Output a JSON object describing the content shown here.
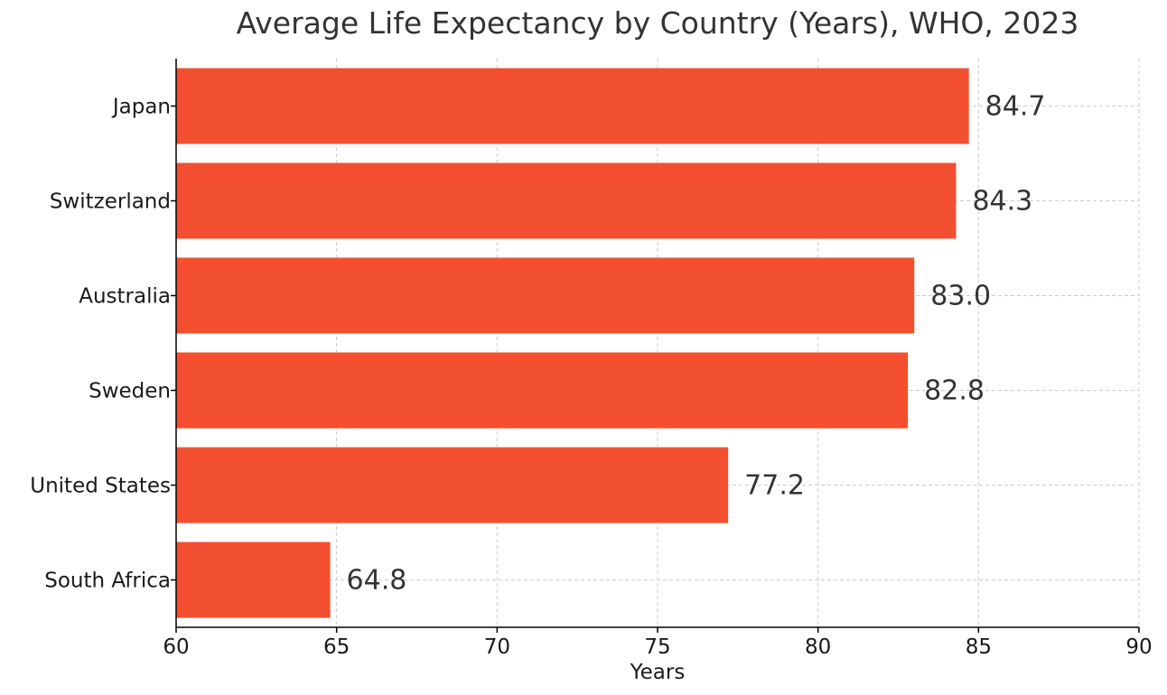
{
  "chart_data": {
    "type": "bar",
    "orientation": "horizontal",
    "title": "Average Life Expectancy by Country (Years), WHO, 2023",
    "xlabel": "Years",
    "ylabel": "",
    "categories": [
      "Japan",
      "Switzerland",
      "Australia",
      "Sweden",
      "United States",
      "South Africa"
    ],
    "values": [
      84.7,
      84.3,
      83.0,
      82.8,
      77.2,
      64.8
    ],
    "value_labels": [
      "84.7",
      "84.3",
      "83.0",
      "82.8",
      "77.2",
      "64.8"
    ],
    "xlim": [
      60,
      90
    ],
    "xticks": [
      60,
      65,
      70,
      75,
      80,
      85,
      90
    ],
    "xtick_labels": [
      "60",
      "65",
      "70",
      "75",
      "80",
      "85",
      "90"
    ],
    "grid": true,
    "legend": "none",
    "bar_color": "#f24f30"
  }
}
